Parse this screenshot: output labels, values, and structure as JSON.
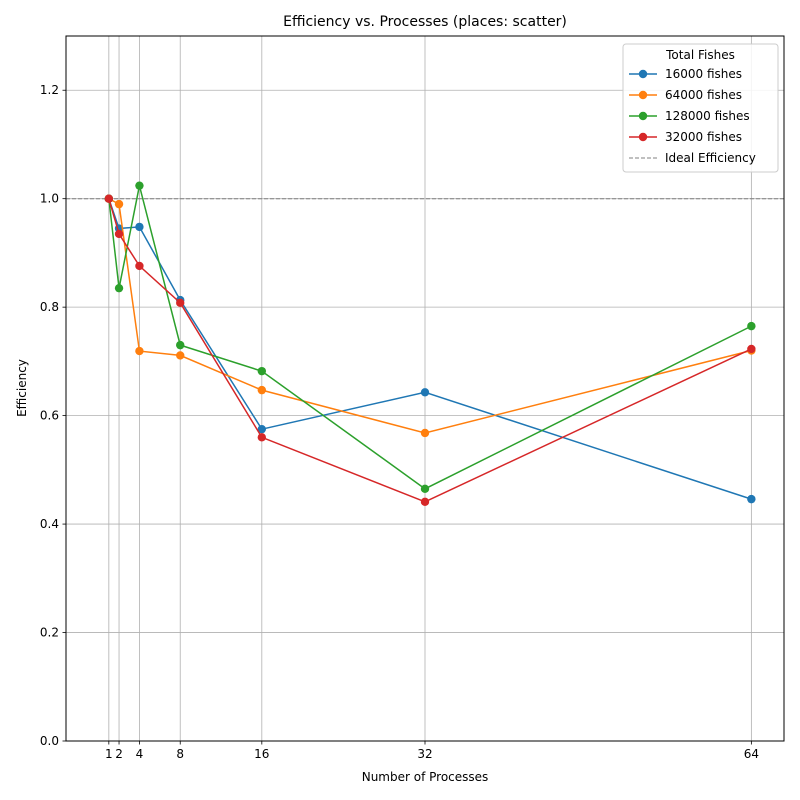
{
  "chart_data": {
    "type": "line",
    "title": "Efficiency vs. Processes (places: scatter)",
    "xlabel": "Number of Processes",
    "ylabel": "Efficiency",
    "xlim": [
      -3.2,
      67.2
    ],
    "ylim": [
      0,
      1.3
    ],
    "xticks": [
      1,
      2,
      4,
      8,
      16,
      32,
      64
    ],
    "yticks": [
      0.0,
      0.2,
      0.4,
      0.6,
      0.8,
      1.0,
      1.2
    ],
    "ytick_labels": [
      "0.0",
      "0.2",
      "0.4",
      "0.6",
      "0.8",
      "1.0",
      "1.2"
    ],
    "grid": true,
    "legend": {
      "title": "Total Fishes",
      "placement": "top-right"
    },
    "series": [
      {
        "name": "16000 fishes",
        "color": "#1f77b4",
        "x": [
          1,
          2,
          4,
          8,
          16,
          32,
          64
        ],
        "y": [
          1.0,
          0.945,
          0.948,
          0.813,
          0.575,
          0.643,
          0.446
        ]
      },
      {
        "name": "64000 fishes",
        "color": "#ff7f0e",
        "x": [
          1,
          2,
          4,
          8,
          16,
          32,
          64
        ],
        "y": [
          1.0,
          0.99,
          0.719,
          0.711,
          0.647,
          0.568,
          0.72
        ]
      },
      {
        "name": "128000 fishes",
        "color": "#2ca02c",
        "x": [
          1,
          2,
          4,
          8,
          16,
          32,
          64
        ],
        "y": [
          1.0,
          0.835,
          1.024,
          0.73,
          0.682,
          0.465,
          0.765
        ]
      },
      {
        "name": "32000 fishes",
        "color": "#d62728",
        "x": [
          1,
          2,
          4,
          8,
          16,
          32,
          64
        ],
        "y": [
          1.0,
          0.935,
          0.876,
          0.808,
          0.56,
          0.441,
          0.723
        ]
      }
    ],
    "reference_line": {
      "name": "Ideal Efficiency",
      "y": 1.0,
      "color": "#808080"
    }
  }
}
